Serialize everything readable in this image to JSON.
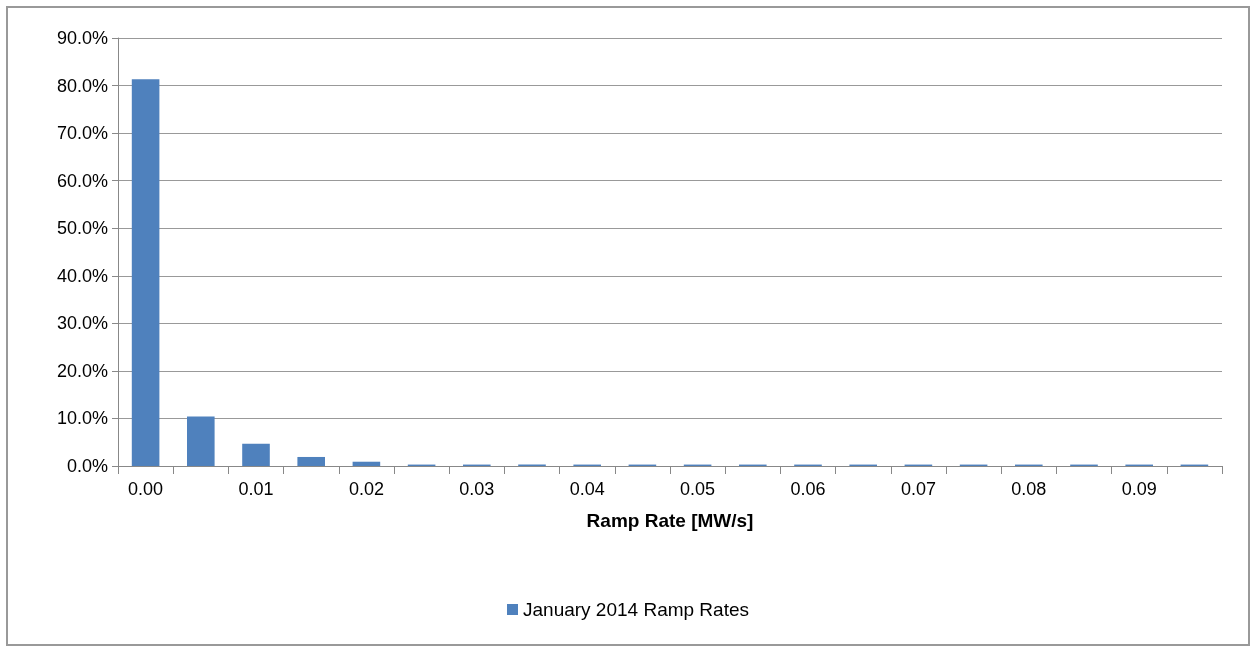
{
  "chart_data": {
    "type": "bar",
    "xlabel": "Ramp Rate [MW/s]",
    "categories": [
      "0.00",
      null,
      "0.01",
      null,
      "0.02",
      null,
      "0.03",
      null,
      "0.04",
      null,
      "0.05",
      null,
      "0.06",
      null,
      "0.07",
      null,
      "0.08",
      null,
      "0.09",
      null
    ],
    "series": [
      {
        "name": "January 2014 Ramp Rates",
        "color": "#4f81bd",
        "values": [
          81.3,
          10.4,
          4.7,
          1.9,
          0.9,
          0.3,
          0.3,
          0.3,
          0.3,
          0.3,
          0.3,
          0.3,
          0.3,
          0.3,
          0.3,
          0.3,
          0.3,
          0.3,
          0.3,
          0.3
        ]
      }
    ],
    "ylim": [
      0,
      90
    ],
    "yticks": [
      {
        "value": 0,
        "label": "0.0%"
      },
      {
        "value": 10,
        "label": "10.0%"
      },
      {
        "value": 20,
        "label": "20.0%"
      },
      {
        "value": 30,
        "label": "30.0%"
      },
      {
        "value": 40,
        "label": "40.0%"
      },
      {
        "value": 50,
        "label": "50.0%"
      },
      {
        "value": 60,
        "label": "60.0%"
      },
      {
        "value": 70,
        "label": "70.0%"
      },
      {
        "value": 80,
        "label": "80.0%"
      },
      {
        "value": 90,
        "label": "90.0%"
      }
    ],
    "grid": "y",
    "legend": "bottom"
  }
}
